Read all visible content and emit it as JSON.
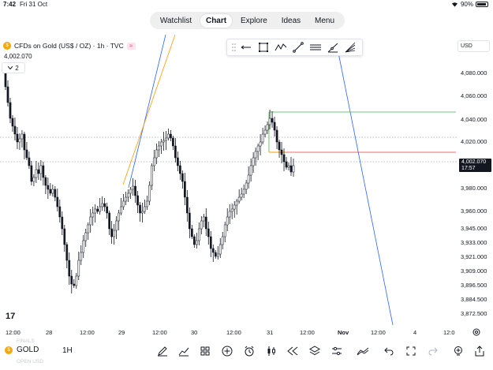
{
  "status_bar": {
    "time": "7:42",
    "date": "Fri 31 Oct",
    "battery": "90%"
  },
  "nav": {
    "tabs": [
      {
        "label": "Watchlist",
        "active": false
      },
      {
        "label": "Chart",
        "active": true
      },
      {
        "label": "Explore",
        "active": false
      },
      {
        "label": "Ideas",
        "active": false
      },
      {
        "label": "Menu",
        "active": false
      }
    ]
  },
  "symbol": {
    "title": "CFDs on Gold (US$ / OZ) · 1h · TVC",
    "price": "4,002.070",
    "indicators_count": "2"
  },
  "currency_selector": "USD",
  "price_axis": {
    "ticks": [
      "4,080.000",
      "4,060.000",
      "4,040.000",
      "4,020.000",
      "3,980.000",
      "3,960.000",
      "3,945.000",
      "3,933.000",
      "3,921.000",
      "3,909.000",
      "3,896.500",
      "3,884.500",
      "3,872.500"
    ],
    "tag_price": "4,002.070",
    "tag_countdown": "17:57"
  },
  "time_axis": {
    "ticks": [
      {
        "label": "12:00",
        "bold": false
      },
      {
        "label": "28",
        "bold": false
      },
      {
        "label": "12:00",
        "bold": false
      },
      {
        "label": "29",
        "bold": false
      },
      {
        "label": "12:00",
        "bold": false
      },
      {
        "label": "30",
        "bold": false
      },
      {
        "label": "12:00",
        "bold": false
      },
      {
        "label": "31",
        "bold": false
      },
      {
        "label": "12:00",
        "bold": false
      },
      {
        "label": "Nov",
        "bold": true
      },
      {
        "label": "12:00",
        "bold": false
      },
      {
        "label": "4",
        "bold": false
      },
      {
        "label": "12:0",
        "bold": false
      }
    ]
  },
  "logo": "17",
  "faded_labels": [
    "FINALS",
    "OPEN USD"
  ],
  "bottom_bar": {
    "symbol": "GOLD",
    "interval": "1H"
  },
  "colors": {
    "candle": "#131722",
    "trend_blue": "#2962ff",
    "trend_orange": "#ff9800",
    "level_green": "#4caf50",
    "level_red": "#f23645",
    "accent_gold": "#f2a900"
  }
}
